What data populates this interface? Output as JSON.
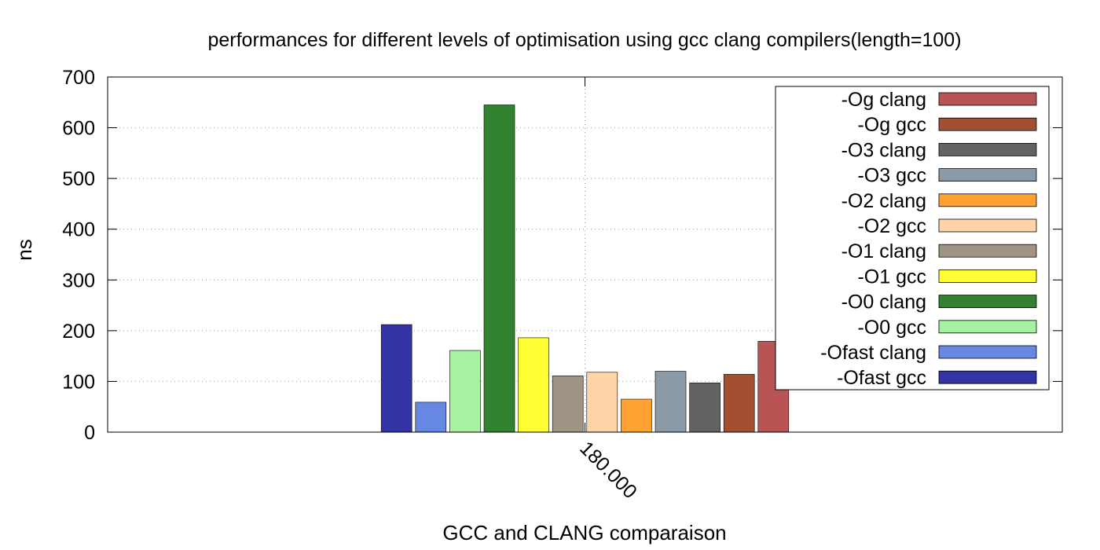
{
  "chart_data": {
    "type": "bar",
    "title": "performances for different levels of optimisation using gcc  clang compilers(length=100)",
    "xlabel": "GCC and CLANG comparaison",
    "ylabel": "ns",
    "ylim": [
      0,
      700
    ],
    "yticks": [
      "0",
      "100",
      "200",
      "300",
      "400",
      "500",
      "600",
      "700"
    ],
    "categories": [
      "180.000"
    ],
    "grid": true,
    "legend_position": "top-right",
    "series": [
      {
        "name": "-Ofast gcc",
        "color": "#3333a3",
        "values": [
          212
        ]
      },
      {
        "name": "-Ofast clang",
        "color": "#6688e2",
        "values": [
          59
        ]
      },
      {
        "name": "-O0 gcc",
        "color": "#a6f2a2",
        "values": [
          161
        ]
      },
      {
        "name": "-O0 clang",
        "color": "#328232",
        "values": [
          645
        ]
      },
      {
        "name": "-O1 gcc",
        "color": "#ffff33",
        "values": [
          186
        ]
      },
      {
        "name": "-O1 clang",
        "color": "#a09484",
        "values": [
          111
        ]
      },
      {
        "name": "-O2 gcc",
        "color": "#ffd4a8",
        "values": [
          118
        ]
      },
      {
        "name": "-O2 clang",
        "color": "#ffa232",
        "values": [
          65
        ]
      },
      {
        "name": "-O3 gcc",
        "color": "#8a9aa6",
        "values": [
          120
        ]
      },
      {
        "name": "-O3 clang",
        "color": "#636363",
        "values": [
          97
        ]
      },
      {
        "name": "-Og gcc",
        "color": "#a24f32",
        "values": [
          114
        ]
      },
      {
        "name": "-Og clang",
        "color": "#b85454",
        "values": [
          179
        ]
      }
    ]
  }
}
